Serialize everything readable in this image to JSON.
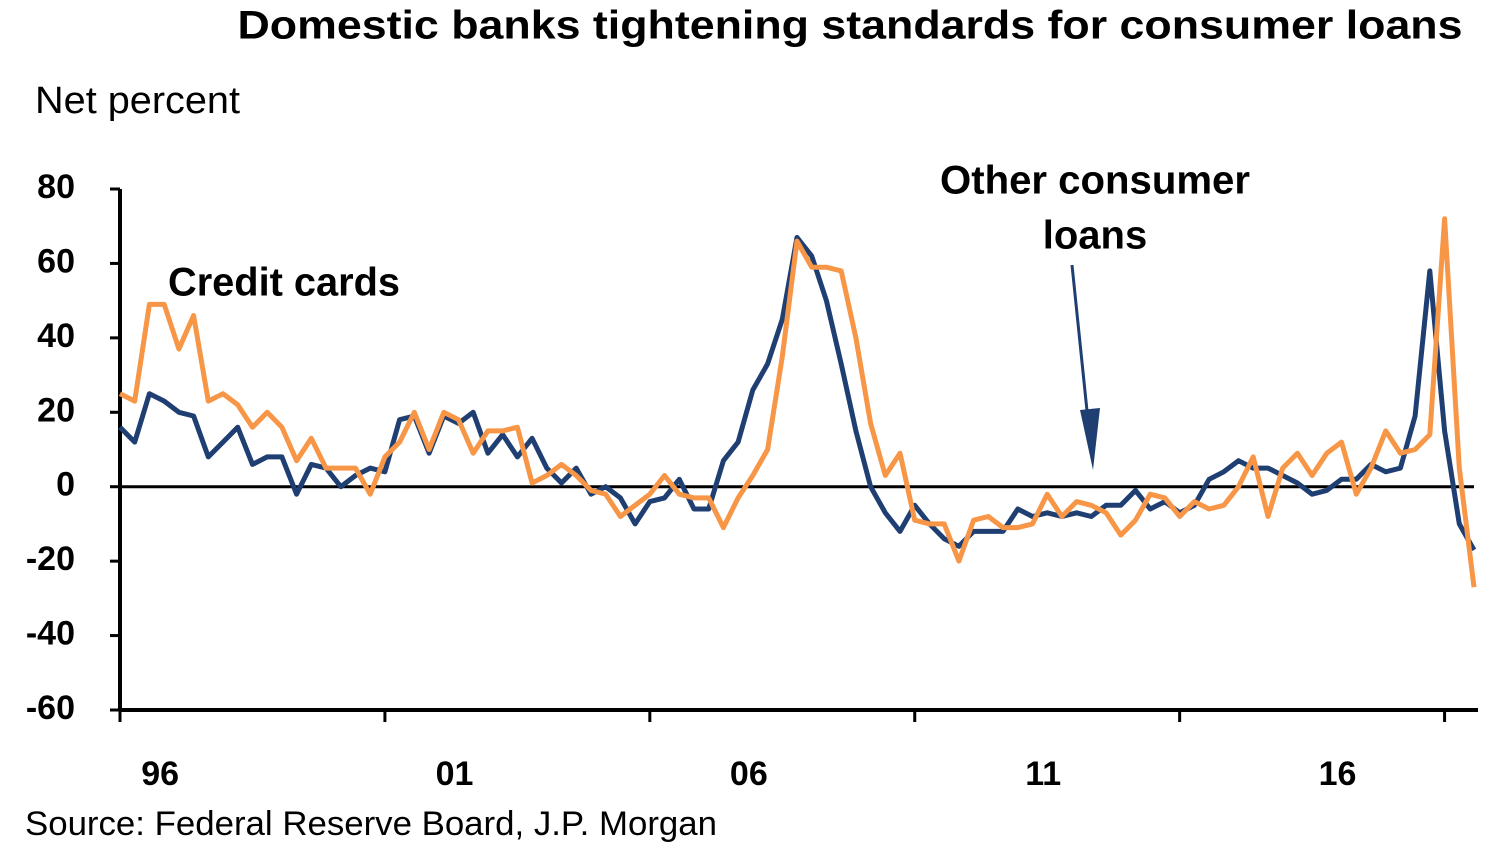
{
  "chart_data": {
    "type": "line",
    "title": "Domestic banks tightening standards for consumer loans",
    "y_label": "Net percent",
    "source": "Source: Federal Reserve Board, J.P. Morgan",
    "annotations": [
      {
        "lines": [
          "Credit cards"
        ]
      },
      {
        "lines": [
          "Other consumer",
          "loans"
        ]
      }
    ],
    "categories": [
      null,
      null,
      null,
      "96",
      null,
      null,
      null,
      null,
      null,
      null,
      null,
      null,
      null,
      null,
      null,
      null,
      null,
      null,
      null,
      null,
      null,
      null,
      null,
      "01",
      null,
      null,
      null,
      null,
      null,
      null,
      null,
      null,
      null,
      null,
      null,
      null,
      null,
      null,
      null,
      null,
      null,
      null,
      null,
      "06",
      null,
      null,
      null,
      null,
      null,
      null,
      null,
      null,
      null,
      null,
      null,
      null,
      null,
      null,
      null,
      null,
      null,
      null,
      null,
      "11",
      null,
      null,
      null,
      null,
      null,
      null,
      null,
      null,
      null,
      null,
      null,
      null,
      null,
      null,
      null,
      null,
      null,
      null,
      null,
      "16",
      null,
      null,
      null,
      null,
      null,
      null,
      null,
      null,
      null
    ],
    "series": [
      {
        "color": "#1f3f73",
        "values": [
          16,
          12,
          25,
          23,
          20,
          19,
          8,
          12,
          16,
          6,
          8,
          8,
          -2,
          6,
          5,
          0,
          3,
          5,
          4,
          18,
          19,
          9,
          19,
          17,
          20,
          9,
          14,
          8,
          13,
          5,
          1,
          5,
          -2,
          0,
          -3,
          -10,
          -4,
          -3,
          2,
          -6,
          -6,
          7,
          12,
          26,
          33,
          45,
          67,
          62,
          50,
          33,
          15,
          0,
          -7,
          -12,
          -5,
          -10,
          -14,
          -16,
          -12,
          -12,
          -12,
          -6,
          -8,
          -7,
          -8,
          -7,
          -8,
          -5,
          -5,
          -1,
          -6,
          -4,
          -7,
          -5,
          2,
          4,
          7,
          5,
          5,
          3,
          1,
          -2,
          -1,
          2,
          2,
          6,
          4,
          5,
          19,
          58,
          15,
          -10,
          -17
        ]
      },
      {
        "color": "#f79646",
        "values": [
          25,
          23,
          49,
          49,
          37,
          46,
          23,
          25,
          22,
          16,
          20,
          16,
          7,
          13,
          5,
          5,
          5,
          -2,
          8,
          12,
          20,
          10,
          20,
          18,
          9,
          15,
          15,
          16,
          1,
          3,
          6,
          3,
          -1,
          -2,
          -8,
          -5,
          -2,
          3,
          -2,
          -3,
          -3,
          -11,
          -3,
          3,
          10,
          35,
          66,
          59,
          59,
          58,
          40,
          17,
          3,
          9,
          -9,
          -10,
          -10,
          -20,
          -9,
          -8,
          -11,
          -11,
          -10,
          -2,
          -8,
          -4,
          -5,
          -7,
          -13,
          -9,
          -2,
          -3,
          -8,
          -4,
          -6,
          -5,
          0,
          8,
          -8,
          5,
          9,
          3,
          9,
          12,
          -2,
          5,
          15,
          9,
          10,
          14,
          72,
          5,
          -27
        ]
      }
    ],
    "ylim": [
      -60,
      80
    ],
    "yticks": [
      -60,
      -40,
      -20,
      0,
      20,
      40,
      60,
      80
    ],
    "grid": false
  }
}
